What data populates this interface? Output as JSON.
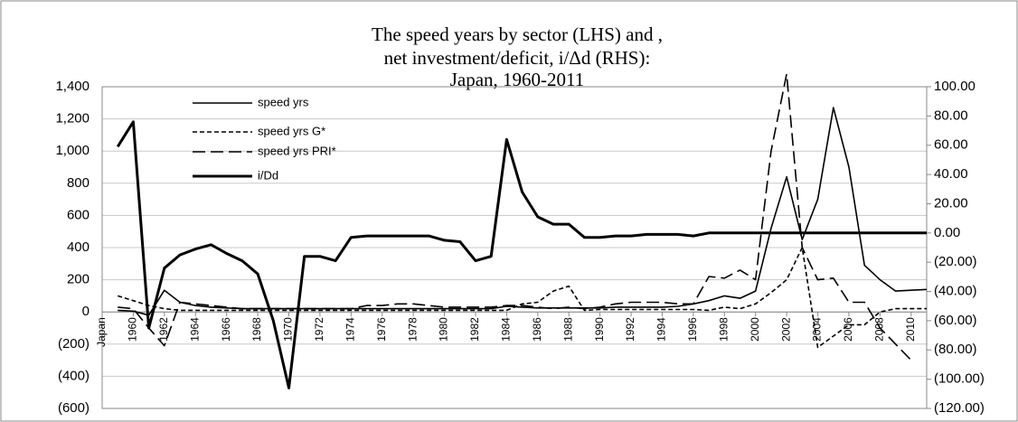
{
  "chart_data": {
    "type": "line",
    "title": [
      "The speed years by sector (LHS) and ,",
      "net investment/deficit, i/Δd (RHS):",
      "Japan, 1960-2011"
    ],
    "categories": [
      "Japan",
      null,
      "1960",
      null,
      "1962",
      null,
      "1964",
      null,
      "1966",
      null,
      "1968",
      null,
      "1970",
      null,
      "1972",
      null,
      "1974",
      null,
      "1976",
      null,
      "1978",
      null,
      "1980",
      null,
      "1982",
      null,
      "1984",
      null,
      "1986",
      null,
      "1988",
      null,
      "1990",
      null,
      "1992",
      null,
      "1994",
      null,
      "1996",
      null,
      "1998",
      null,
      "2000",
      null,
      "2002",
      null,
      "2004",
      null,
      "2006",
      null,
      "2008",
      null,
      "2010",
      null
    ],
    "ylim": [
      -600,
      1400
    ],
    "yticks": [
      {
        "value": -600,
        "label": "(600)"
      },
      {
        "value": -400,
        "label": "(400)"
      },
      {
        "value": -200,
        "label": "(200)"
      },
      0,
      200,
      400,
      600,
      800,
      {
        "value": 1000,
        "label": "1,000"
      },
      {
        "value": 1200,
        "label": "1,200"
      },
      {
        "value": 1400,
        "label": "1,400"
      }
    ],
    "y2lim": [
      -120,
      100
    ],
    "y2ticks": [
      {
        "value": -120,
        "label": "(120.00)"
      },
      {
        "value": -100,
        "label": "(100.00)"
      },
      {
        "value": -80,
        "label": "(80.00)"
      },
      {
        "value": -60,
        "label": "(60.00)"
      },
      {
        "value": -40,
        "label": "(40.00)"
      },
      {
        "value": -20,
        "label": "(20.00)"
      },
      {
        "value": 0,
        "label": "0.00"
      },
      {
        "value": 20,
        "label": "20.00"
      },
      {
        "value": 40,
        "label": "40.00"
      },
      {
        "value": 60,
        "label": "60.00"
      },
      {
        "value": 80,
        "label": "80.00"
      },
      {
        "value": 100,
        "label": "100.00"
      }
    ],
    "grid": true,
    "legend": "upper left",
    "series": [
      {
        "name": "speed yrs",
        "color": "#000000",
        "style": "solid",
        "values": [
          null,
          10,
          5,
          -20,
          135,
          60,
          40,
          30,
          25,
          20,
          20,
          20,
          20,
          20,
          20,
          20,
          20,
          20,
          20,
          20,
          20,
          20,
          20,
          20,
          20,
          20,
          35,
          30,
          25,
          25,
          25,
          25,
          25,
          30,
          30,
          30,
          30,
          35,
          50,
          70,
          100,
          85,
          130,
          520,
          840,
          450,
          700,
          1270,
          900,
          290,
          200,
          130,
          135,
          140
        ]
      },
      {
        "name": "speed yrs G*",
        "color": "#000000",
        "style": "short-dash",
        "values": [
          null,
          100,
          70,
          40,
          20,
          10,
          10,
          10,
          10,
          10,
          10,
          10,
          10,
          10,
          10,
          10,
          10,
          10,
          10,
          10,
          10,
          10,
          10,
          10,
          10,
          10,
          10,
          50,
          60,
          130,
          160,
          10,
          15,
          15,
          15,
          15,
          15,
          15,
          15,
          10,
          30,
          20,
          50,
          120,
          200,
          400,
          -220,
          -150,
          -80,
          -80,
          0,
          20,
          20,
          20
        ]
      },
      {
        "name": "speed yrs PRI*",
        "color": "#000000",
        "style": "long-dash",
        "values": [
          null,
          30,
          20,
          -100,
          -210,
          60,
          50,
          40,
          30,
          20,
          20,
          20,
          20,
          20,
          20,
          20,
          20,
          40,
          40,
          50,
          50,
          40,
          30,
          30,
          30,
          30,
          40,
          40,
          30,
          20,
          30,
          20,
          30,
          50,
          60,
          60,
          60,
          50,
          50,
          220,
          210,
          260,
          200,
          1000,
          1480,
          400,
          200,
          210,
          60,
          60,
          -100,
          -200,
          -300,
          null
        ]
      },
      {
        "name": "i/Dd",
        "color": "#000000",
        "style": "thick",
        "axis": "y2",
        "values": [
          null,
          59,
          76,
          -65,
          -24,
          -15,
          -11,
          -8,
          -14,
          -19,
          -28,
          -60,
          -106,
          -16,
          -16,
          -19,
          -3,
          -2,
          -2,
          -2,
          -2,
          -2,
          -5,
          -6,
          -19,
          -16,
          64,
          28,
          11,
          6,
          6,
          -3,
          -3,
          -2,
          -2,
          -1,
          -1,
          -1,
          -2,
          0,
          0,
          0,
          0,
          0,
          0,
          0,
          0,
          0,
          0,
          0,
          0,
          0,
          0,
          0
        ]
      }
    ]
  }
}
